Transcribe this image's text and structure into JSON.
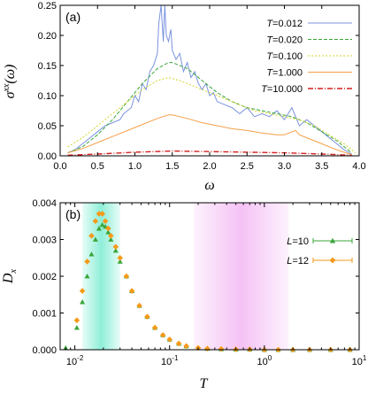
{
  "chart_data": [
    {
      "type": "line",
      "panel_label": "(a)",
      "xlabel": "ω",
      "ylabel": "σxx(ω)",
      "xlim": [
        0.0,
        4.0
      ],
      "ylim": [
        0.0,
        0.25
      ],
      "xticks": [
        "0.0",
        "0.5",
        "1.0",
        "1.5",
        "2.0",
        "2.5",
        "3.0",
        "3.5",
        "4.0"
      ],
      "yticks": [
        "0.00",
        "0.05",
        "0.10",
        "0.15",
        "0.20",
        "0.25"
      ],
      "legend_position": "top-right",
      "series": [
        {
          "name": "T=0.012",
          "legend_var": "T",
          "legend_val": "=0.012",
          "color": "#7b93e0",
          "dash": "none",
          "x": [
            0.1,
            0.2,
            0.3,
            0.4,
            0.5,
            0.6,
            0.7,
            0.8,
            0.85,
            0.9,
            0.95,
            1.0,
            1.05,
            1.1,
            1.15,
            1.2,
            1.25,
            1.3,
            1.32,
            1.35,
            1.38,
            1.4,
            1.42,
            1.45,
            1.48,
            1.5,
            1.55,
            1.6,
            1.65,
            1.7,
            1.75,
            1.8,
            1.85,
            1.9,
            1.95,
            2.0,
            2.05,
            2.1,
            2.2,
            2.3,
            2.4,
            2.5,
            2.6,
            2.7,
            2.8,
            2.9,
            3.0,
            3.05,
            3.1,
            3.15,
            3.2,
            3.3,
            3.4,
            3.5,
            3.6,
            3.7,
            3.8,
            3.9
          ],
          "y": [
            0.005,
            0.01,
            0.02,
            0.03,
            0.04,
            0.05,
            0.055,
            0.06,
            0.07,
            0.075,
            0.08,
            0.1,
            0.09,
            0.12,
            0.11,
            0.14,
            0.15,
            0.17,
            0.22,
            0.25,
            0.19,
            0.25,
            0.2,
            0.19,
            0.21,
            0.175,
            0.16,
            0.17,
            0.14,
            0.155,
            0.13,
            0.14,
            0.12,
            0.11,
            0.12,
            0.1,
            0.105,
            0.09,
            0.085,
            0.08,
            0.07,
            0.08,
            0.065,
            0.07,
            0.065,
            0.075,
            0.06,
            0.07,
            0.08,
            0.065,
            0.05,
            0.06,
            0.05,
            0.04,
            0.03,
            0.02,
            0.01,
            0.003
          ]
        },
        {
          "name": "T=0.020",
          "legend_var": "T",
          "legend_val": "=0.020",
          "color": "#3aa63a",
          "dash": "4,2",
          "x": [
            0.1,
            0.3,
            0.5,
            0.7,
            0.9,
            1.1,
            1.3,
            1.45,
            1.5,
            1.7,
            1.9,
            2.1,
            2.3,
            2.5,
            2.7,
            2.9,
            3.1,
            3.3,
            3.5,
            3.7,
            3.9
          ],
          "y": [
            0.005,
            0.015,
            0.035,
            0.06,
            0.09,
            0.12,
            0.145,
            0.155,
            0.155,
            0.145,
            0.125,
            0.105,
            0.09,
            0.08,
            0.075,
            0.07,
            0.065,
            0.055,
            0.04,
            0.025,
            0.005
          ]
        },
        {
          "name": "T=0.100",
          "legend_var": "T",
          "legend_val": "=0.100",
          "color": "#d4d42a",
          "dash": "2,2",
          "x": [
            0.1,
            0.3,
            0.5,
            0.7,
            0.9,
            1.1,
            1.3,
            1.45,
            1.6,
            1.8,
            2.0,
            2.2,
            2.4,
            2.6,
            2.8,
            3.0,
            3.2,
            3.4,
            3.6,
            3.8,
            3.95
          ],
          "y": [
            0.015,
            0.03,
            0.05,
            0.07,
            0.09,
            0.11,
            0.125,
            0.13,
            0.125,
            0.115,
            0.105,
            0.095,
            0.085,
            0.075,
            0.07,
            0.065,
            0.06,
            0.05,
            0.035,
            0.02,
            0.005
          ]
        },
        {
          "name": "T=1.000",
          "legend_var": "T",
          "legend_val": "=1.000",
          "color": "#f5a04a",
          "dash": "none",
          "x": [
            0.1,
            0.3,
            0.5,
            0.7,
            0.9,
            1.1,
            1.3,
            1.45,
            1.5,
            1.7,
            1.9,
            2.1,
            2.3,
            2.5,
            2.7,
            2.9,
            3.0,
            3.1,
            3.15,
            3.2,
            3.3,
            3.5,
            3.7,
            3.9
          ],
          "y": [
            0.005,
            0.012,
            0.022,
            0.032,
            0.042,
            0.052,
            0.062,
            0.068,
            0.068,
            0.062,
            0.055,
            0.05,
            0.045,
            0.042,
            0.038,
            0.035,
            0.035,
            0.04,
            0.042,
            0.035,
            0.03,
            0.02,
            0.01,
            0.002
          ]
        },
        {
          "name": "T=10.000",
          "legend_var": "T",
          "legend_val": "=10.000",
          "color": "#d42020",
          "dash": "6,2,1,2",
          "x": [
            0.1,
            0.5,
            1.0,
            1.5,
            2.0,
            2.5,
            3.0,
            3.5,
            3.9
          ],
          "y": [
            0.001,
            0.003,
            0.006,
            0.008,
            0.007,
            0.006,
            0.005,
            0.003,
            0.001
          ]
        }
      ]
    },
    {
      "type": "scatter",
      "panel_label": "(b)",
      "xlabel": "T",
      "ylabel": "Dx",
      "xscale": "log",
      "xlim": [
        0.007,
        10
      ],
      "ylim": [
        0.0,
        0.004
      ],
      "xticks": [
        "10-2",
        "10-1",
        "100",
        "101"
      ],
      "yticks": [
        "0.000",
        "0.001",
        "0.002",
        "0.003",
        "0.004"
      ],
      "legend_position": "top-right",
      "shaded_regions": [
        {
          "x0": 0.012,
          "x1": 0.03,
          "color": "#5fe8c8"
        },
        {
          "x0": 0.18,
          "x1": 1.8,
          "color": "#f0a8f0"
        }
      ],
      "series": [
        {
          "name": "L=10",
          "legend_var": "L",
          "legend_val": "=10",
          "color": "#3aa63a",
          "marker": "triangle",
          "x": [
            0.008,
            0.0105,
            0.012,
            0.0135,
            0.015,
            0.0165,
            0.018,
            0.0195,
            0.021,
            0.0225,
            0.024,
            0.027,
            0.03,
            0.035,
            0.04,
            0.048,
            0.058,
            0.07,
            0.085,
            0.1,
            0.125,
            0.15,
            0.2,
            0.25,
            0.35,
            0.5,
            0.7,
            1.0,
            1.4,
            2.0,
            3.0,
            5.0,
            8.0
          ],
          "y": [
            5e-05,
            0.0006,
            0.0013,
            0.002,
            0.0026,
            0.003,
            0.0033,
            0.0034,
            0.00335,
            0.0032,
            0.003,
            0.0027,
            0.0024,
            0.002,
            0.0016,
            0.0012,
            0.0009,
            0.0006,
            0.0004,
            0.00028,
            0.00017,
            0.0001,
            5e-05,
            3e-05,
            2e-05,
            1e-05,
            1e-05,
            0.0,
            0.0,
            0.0,
            0.0,
            0.0,
            0.0
          ]
        },
        {
          "name": "L=12",
          "legend_var": "L",
          "legend_val": "=12",
          "color": "#f59a1a",
          "marker": "diamond",
          "x": [
            0.0105,
            0.012,
            0.0135,
            0.015,
            0.0165,
            0.018,
            0.0195,
            0.021,
            0.0225,
            0.024,
            0.027,
            0.03,
            0.035,
            0.04,
            0.048,
            0.058,
            0.07,
            0.085,
            0.1,
            0.125,
            0.15,
            0.2,
            0.25,
            0.35,
            0.5,
            0.7,
            1.0,
            1.4,
            2.0,
            3.0,
            5.0,
            8.0
          ],
          "y": [
            0.0008,
            0.0016,
            0.0024,
            0.0031,
            0.0035,
            0.0037,
            0.0037,
            0.0035,
            0.0033,
            0.0031,
            0.0028,
            0.0025,
            0.002,
            0.0016,
            0.0012,
            0.0009,
            0.0006,
            0.0004,
            0.00028,
            0.00017,
            0.0001,
            5e-05,
            3e-05,
            2e-05,
            1e-05,
            1e-05,
            0.0,
            0.0,
            0.0,
            0.0,
            0.0,
            0.0
          ]
        }
      ]
    }
  ]
}
